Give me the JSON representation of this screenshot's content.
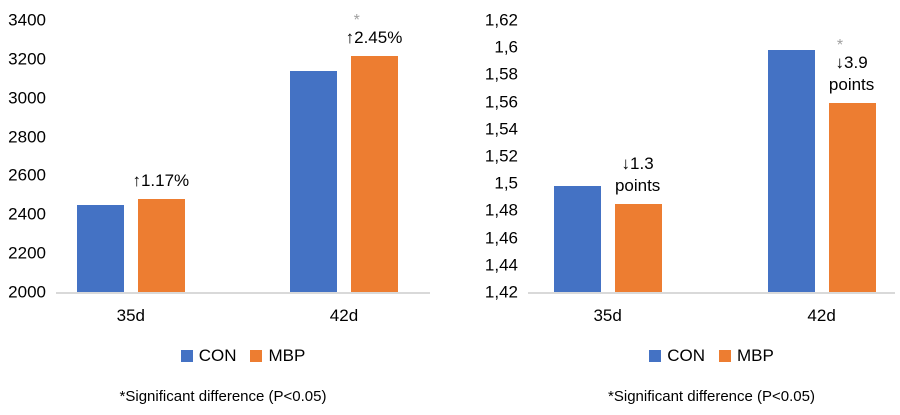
{
  "style": {
    "con_color": "#4472C4",
    "mbp_color": "#ED7D31",
    "asterisk_color": "#A0A0A0",
    "baseline_color": "#D9D9D9",
    "text_color": "#000000"
  },
  "chart_data": [
    {
      "type": "bar",
      "title": "",
      "xlabel": "",
      "ylabel": "",
      "categories": [
        "35d",
        "42d"
      ],
      "series": [
        {
          "name": "CON",
          "color": "#4472C4",
          "values": [
            2450,
            3140
          ]
        },
        {
          "name": "MBP",
          "color": "#ED7D31",
          "values": [
            2479,
            3217
          ]
        }
      ],
      "ylim": [
        2000,
        3400
      ],
      "grid": false,
      "legend_position": "bottom",
      "yticks": [
        {
          "v": 3400,
          "label": "3400"
        },
        {
          "v": 3200,
          "label": "3200"
        },
        {
          "v": 3000,
          "label": "3000"
        },
        {
          "v": 2800,
          "label": "2800"
        },
        {
          "v": 2600,
          "label": "2600"
        },
        {
          "v": 2400,
          "label": "2400"
        },
        {
          "v": 2200,
          "label": "2200"
        },
        {
          "v": 2000,
          "label": "2000"
        }
      ],
      "annotations": [
        {
          "category": "35d",
          "lines": [
            "↑1.17%"
          ],
          "significant": false
        },
        {
          "category": "42d",
          "lines": [
            "↑2.45%"
          ],
          "significant": true
        }
      ],
      "footnote": "*Significant difference (P<0.05)"
    },
    {
      "type": "bar",
      "title": "",
      "xlabel": "",
      "ylabel": "",
      "categories": [
        "35d",
        "42d"
      ],
      "series": [
        {
          "name": "CON",
          "color": "#4472C4",
          "values": [
            1.498,
            1.598
          ]
        },
        {
          "name": "MBP",
          "color": "#ED7D31",
          "values": [
            1.485,
            1.559
          ]
        }
      ],
      "ylim": [
        1.42,
        1.62
      ],
      "grid": false,
      "legend_position": "bottom",
      "yticks": [
        {
          "v": 1.62,
          "label": "1,62"
        },
        {
          "v": 1.6,
          "label": "1,6"
        },
        {
          "v": 1.58,
          "label": "1,58"
        },
        {
          "v": 1.56,
          "label": "1,56"
        },
        {
          "v": 1.54,
          "label": "1,54"
        },
        {
          "v": 1.52,
          "label": "1,52"
        },
        {
          "v": 1.5,
          "label": "1,5"
        },
        {
          "v": 1.48,
          "label": "1,48"
        },
        {
          "v": 1.46,
          "label": "1,46"
        },
        {
          "v": 1.44,
          "label": "1,44"
        },
        {
          "v": 1.42,
          "label": "1,42"
        }
      ],
      "annotations": [
        {
          "category": "35d",
          "lines": [
            "↓1.3",
            "points"
          ],
          "significant": false
        },
        {
          "category": "42d",
          "lines": [
            "↓3.9",
            "points"
          ],
          "significant": true
        }
      ],
      "footnote": "*Significant difference (P<0.05)"
    }
  ]
}
